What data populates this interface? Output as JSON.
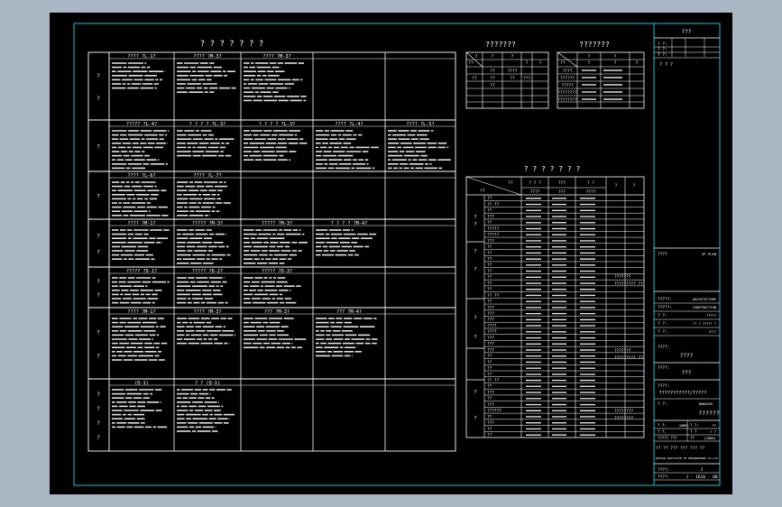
{
  "app": {
    "window_title": "CAD drawing viewer"
  },
  "colors": {
    "background": "#a9b7c4",
    "sheet": "#000000",
    "frame": "#00c8d8",
    "lines": "#ffffff",
    "text": "#ffffff",
    "scribble": "#e0e0e0"
  },
  "main_table": {
    "title": "?  ?  ?  ?  ?  ?  ?",
    "row_labels": [
      [
        "?",
        "?"
      ],
      [
        "?"
      ],
      [
        "?"
      ],
      [
        "?",
        "?"
      ],
      [
        "?",
        "?"
      ],
      [
        "?",
        "?"
      ],
      [
        "?",
        "?",
        "?",
        "?"
      ]
    ],
    "cell_headers": [
      [
        "????   ?L-1?",
        "????    ?M-3?",
        "????    ?M-3?",
        "",
        ""
      ],
      [
        "?????   ?L-4?",
        "? ? ? ?   ?L-3?",
        "? ? ? ?   ?L-3?",
        "????   ?L-4?",
        "???? ?L-5?"
      ],
      [
        "????   ?L-6?",
        "????   ?L-7?",
        "",
        "",
        ""
      ],
      [
        "????   ?M-1?",
        "?????   ?M-3?",
        "?????    ?M-3?",
        "? ? ? ?   ?M-4?",
        ""
      ],
      [
        "?????   ?D-1?",
        "?????   ?D-2?",
        "?????    ?D-3?",
        "",
        ""
      ],
      [
        "????    ?M-1?",
        "????   ?M-3?",
        "???   ?M-3?",
        "???   ?M-4?",
        ""
      ],
      [
        "(Q-1)",
        "?  ?   (Q-1)",
        "",
        "",
        ""
      ]
    ]
  },
  "table_a": {
    "title": "???????",
    "head": [
      "?",
      "?",
      "??",
      "?",
      "?",
      "?",
      "?",
      "??"
    ],
    "rows": [
      [
        "??",
        "??",
        "????",
        "???",
        "",
        "??"
      ],
      [
        "",
        "??",
        "??",
        "???",
        "",
        ""
      ]
    ]
  },
  "table_b": {
    "title": "???????",
    "head": [
      "?",
      "?",
      "??",
      "?",
      "?",
      "?"
    ],
    "rows": [
      "????",
      "??????",
      "?????",
      "????????",
      "????????"
    ]
  },
  "table_c": {
    "title": "? ? ? ? ? ? ?",
    "head": [
      "??",
      "??",
      "? ? ?",
      "???",
      "? ?",
      "?",
      "?"
    ],
    "sub_head": [
      "????",
      "???",
      "????"
    ],
    "group_labels": [
      "?",
      "?",
      "?",
      "?",
      "?",
      "?",
      "?",
      "?"
    ],
    "row_names": [
      "??",
      "??   ??",
      "??",
      "???",
      "??",
      "?????",
      "?????",
      "???",
      "??",
      "??",
      "??",
      "??",
      "??",
      "??",
      "??",
      "??",
      "??  ??",
      "??",
      "???",
      "???",
      "???",
      "????",
      "????",
      "???",
      "???",
      "???",
      "??",
      "??",
      "??",
      "??",
      "??   ??",
      "??",
      "???",
      "??",
      "???",
      "??????",
      "??",
      "???",
      "??",
      "??"
    ],
    "remarks": [
      "???????",
      "????????? ??",
      "???????",
      "????????? ??",
      "????????",
      "????????"
    ]
  },
  "title_block": {
    "header": "???",
    "top_rows": [
      "? ?:",
      "? ?:",
      "? ?:"
    ],
    "top_note": "? ? ?",
    "scale_label": "????",
    "scale_value": "SP PLAN",
    "rows": [
      {
        "label": "?????:",
        "value": "ARCHITECTURE"
      },
      {
        "label": "?????:",
        "value": "CONSTRUCTION"
      },
      {
        "label": "? ?:",
        "value": "?????"
      },
      {
        "label": "? ?:",
        "value": "?? ? ????? ?"
      },
      {
        "label": "? ?:",
        "value": "????"
      }
    ],
    "project_label": "????:",
    "project_value": "????",
    "drawing_label": "????:",
    "drawing_value": "???",
    "subject_label": "????:",
    "subject_value": "???????????/?????",
    "sign_label": "? ?:",
    "sign_value": "MANAGER",
    "big_note": "??????",
    "sign_rows": [
      [
        "? ?:",
        "JAMES",
        "? ?:",
        "??"
      ],
      [
        "? ?:",
        "",
        "? ?",
        "? ?"
      ],
      [
        "????? ???",
        "",
        "??",
        "(2006)"
      ]
    ],
    "company_line1": "?? ?? ??? ??? ??? ??",
    "company_line2": "DESIGN INSTITUTE OF ENGINEERING CO.LTD",
    "num_rows": [
      [
        "????:",
        "J"
      ],
      [
        "????:",
        "J - 1616 - 08"
      ]
    ]
  }
}
